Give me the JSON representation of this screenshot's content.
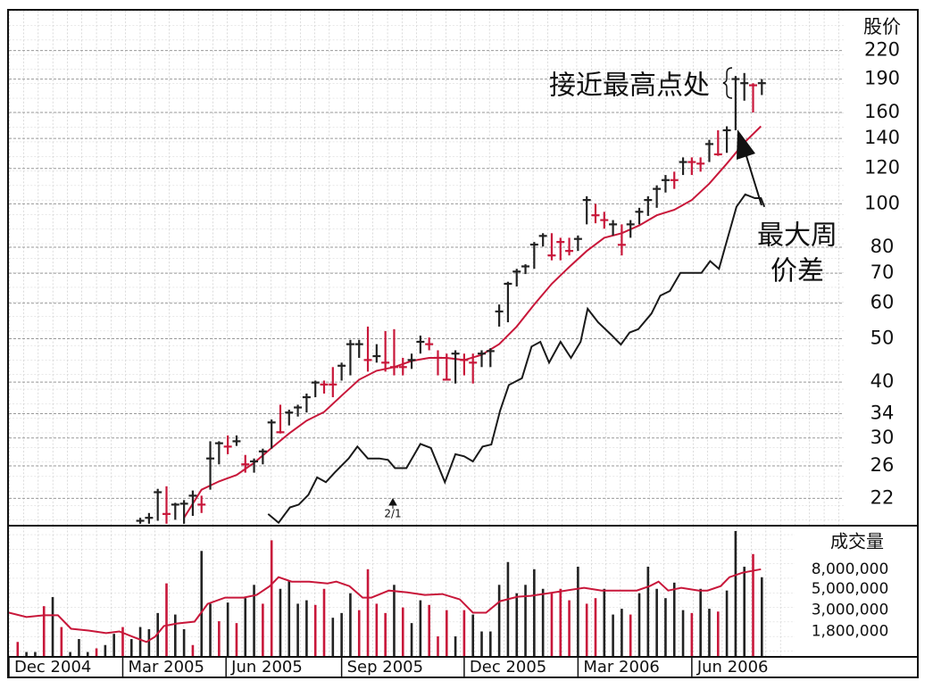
{
  "chart_data": [
    {
      "type": "hlc",
      "y_label": "股价",
      "log_scale": true,
      "grid": true,
      "ylim": [
        19.2,
        270
      ],
      "yticks": [
        22,
        26,
        30,
        34,
        40,
        50,
        60,
        70,
        80,
        100,
        120,
        140,
        160,
        190,
        220
      ],
      "xlim": [
        0,
        103
      ],
      "x": [
        15,
        16,
        17,
        18,
        19,
        20,
        21,
        22,
        23,
        24,
        25,
        26,
        27,
        28,
        29,
        30,
        31,
        32,
        33,
        34,
        35,
        36,
        37,
        38,
        39,
        40,
        41,
        42,
        43,
        44,
        45,
        46,
        47,
        48,
        49,
        50,
        51,
        52,
        53,
        54,
        55,
        56,
        57,
        58,
        59,
        60,
        61,
        62,
        63,
        64,
        65,
        66,
        67,
        68,
        69,
        70,
        71,
        72,
        73,
        74,
        75,
        76,
        77,
        78,
        79,
        80,
        81,
        82,
        83,
        84,
        85,
        86
      ],
      "high": [
        19.9,
        20.4,
        23.1,
        23.4,
        21.5,
        21.8,
        22.9,
        22.3,
        29.5,
        29.5,
        30.4,
        30.4,
        27.5,
        27.0,
        28.4,
        33.0,
        35.6,
        34.7,
        35.6,
        37.7,
        40.3,
        40.3,
        43.2,
        44.2,
        49.7,
        49.7,
        53.2,
        48.6,
        52.0,
        52.5,
        45.3,
        46.3,
        50.8,
        50.3,
        47.1,
        46.3,
        47.1,
        46.3,
        46.3,
        47.1,
        47.6,
        59.6,
        67.0,
        71.6,
        73.3,
        82.2,
        86.0,
        86.0,
        84.0,
        84.0,
        85.0,
        104,
        100,
        96,
        92,
        90,
        92,
        98,
        104,
        110,
        116,
        118,
        127,
        127,
        127,
        139,
        146,
        149,
        193,
        196,
        186,
        190
      ],
      "low": [
        19.3,
        19.3,
        19.6,
        19.3,
        19.7,
        19.3,
        20.1,
        20.4,
        23.0,
        26.2,
        27.6,
        28.8,
        25.1,
        25.1,
        26.2,
        28.4,
        30.7,
        32.0,
        33.5,
        34.2,
        37.0,
        37.7,
        37.0,
        40.3,
        41.4,
        45.3,
        42.2,
        44.2,
        42.2,
        41.4,
        41.4,
        42.8,
        46.3,
        47.1,
        41.4,
        40.5,
        39.7,
        41.4,
        39.7,
        43.2,
        43.2,
        53.2,
        54.4,
        65.4,
        69.7,
        71.6,
        80.3,
        74.8,
        74.8,
        76.7,
        78.5,
        90,
        90.5,
        88,
        85,
        76.7,
        84,
        90,
        94,
        98,
        106,
        108,
        116,
        116,
        118,
        124,
        128,
        130,
        146,
        170,
        160,
        175
      ],
      "close": [
        19.6,
        19.9,
        22.7,
        20.3,
        21.3,
        21.4,
        22.3,
        21.3,
        27.0,
        29.2,
        28.7,
        29.5,
        26.2,
        26.6,
        28.0,
        32.5,
        30.9,
        34.2,
        35.1,
        37.0,
        39.9,
        39.5,
        39.5,
        43.5,
        48.6,
        48.6,
        44.8,
        45.7,
        44.2,
        43.2,
        43.2,
        44.8,
        49.2,
        48.6,
        45.3,
        40.5,
        46.3,
        44.8,
        44.2,
        46.3,
        46.9,
        57.5,
        66.3,
        70.6,
        72.5,
        81.1,
        84.8,
        76.7,
        82.2,
        78.5,
        83.5,
        102,
        94.3,
        92,
        90,
        81,
        90,
        96,
        102,
        108,
        113,
        113,
        124,
        124,
        123,
        136,
        129,
        146,
        190,
        186,
        184,
        186
      ],
      "bar_colors": [
        "#222",
        "#222",
        "#222",
        "#c8173a",
        "#222",
        "#222",
        "#222",
        "#c8173a",
        "#222",
        "#222",
        "#c8173a",
        "#222",
        "#c8173a",
        "#222",
        "#222",
        "#222",
        "#c8173a",
        "#222",
        "#222",
        "#222",
        "#222",
        "#c8173a",
        "#c8173a",
        "#222",
        "#222",
        "#222",
        "#c8173a",
        "#222",
        "#c8173a",
        "#c8173a",
        "#c8173a",
        "#222",
        "#222",
        "#c8173a",
        "#c8173a",
        "#c8173a",
        "#222",
        "#c8173a",
        "#c8173a",
        "#222",
        "#222",
        "#222",
        "#222",
        "#222",
        "#222",
        "#222",
        "#222",
        "#c8173a",
        "#c8173a",
        "#c8173a",
        "#222",
        "#222",
        "#c8173a",
        "#c8173a",
        "#222",
        "#c8173a",
        "#222",
        "#222",
        "#222",
        "#222",
        "#222",
        "#c8173a",
        "#222",
        "#c8173a",
        "#c8173a",
        "#222",
        "#c8173a",
        "#222",
        "#222",
        "#222",
        "#c8173a",
        "#222"
      ],
      "lines": [
        {
          "color": "#c8173a",
          "x": [
            20,
            22,
            24,
            26,
            28,
            30,
            32,
            34,
            36,
            38,
            40,
            42,
            44,
            46,
            48,
            50,
            52,
            54,
            56,
            58,
            60,
            62,
            64,
            66,
            68,
            70,
            72,
            74,
            76,
            78,
            80,
            82,
            84,
            85.9
          ],
          "values": [
            19.9,
            23.0,
            24.0,
            24.8,
            26.4,
            28.5,
            30.7,
            32.8,
            34.3,
            37.3,
            40.5,
            42.4,
            43.2,
            44.6,
            45.3,
            45.3,
            44.8,
            46.0,
            48.6,
            53.2,
            59.6,
            66.3,
            72.3,
            78.5,
            84.0,
            86,
            89.5,
            94.3,
            97,
            102,
            111,
            123,
            137,
            149
          ]
        },
        {
          "color": "#1a1a1a",
          "x": [
            29.6,
            30.8,
            32.1,
            33.1,
            34.2,
            35.2,
            36.2,
            37.2,
            38.8,
            39.8,
            41,
            42.3,
            43.3,
            44.1,
            45.4,
            47,
            48.2,
            49.8,
            51,
            52,
            53,
            54.1,
            55.1,
            56.1,
            57.1,
            58.6,
            59.7,
            60.7,
            61.7,
            63,
            64.2,
            65.3,
            66.1,
            67.3,
            68.8,
            69.9,
            70.9,
            71.9,
            73.4,
            74.4,
            75.5,
            76.7,
            77.5,
            79.1,
            80.1,
            81.1,
            82.1,
            83.1,
            84.1,
            85.2,
            85.9,
            86.3
          ],
          "values": [
            20.3,
            19.4,
            21.0,
            21.3,
            22.4,
            24.5,
            23.9,
            25.1,
            27.0,
            28.7,
            27.0,
            27.0,
            26.8,
            25.7,
            25.7,
            29.1,
            28.5,
            23.9,
            27.6,
            27.3,
            26.6,
            28.7,
            29.0,
            34.5,
            39.4,
            40.8,
            48.0,
            49.2,
            44.2,
            49.2,
            45.3,
            49.2,
            58.3,
            54.4,
            51.0,
            48.5,
            51.6,
            52.5,
            56.9,
            62.4,
            63.9,
            70.1,
            70.1,
            70.1,
            74.5,
            71.6,
            84.0,
            98.5,
            105,
            103,
            103,
            98.5
          ]
        }
      ],
      "annotations": [
        "接近最高点处",
        "最大周",
        "价差",
        "2/1"
      ]
    },
    {
      "type": "bar",
      "y_label": "成交量",
      "log_scale": true,
      "ylim": [
        1000000,
        21300000
      ],
      "yticks": [
        {
          "value": 1800000,
          "label": "1,800,000"
        },
        {
          "value": 3000000,
          "label": "3,000,000"
        },
        {
          "value": 5000000,
          "label": "5,000,000"
        },
        {
          "value": 8000000,
          "label": "8,000,000"
        }
      ],
      "xlim": [
        0,
        103
      ],
      "xticks": [
        {
          "value": 0,
          "label": "Dec 2004"
        },
        {
          "value": 13,
          "label": "Mar 2005"
        },
        {
          "value": 24.8,
          "label": "Jun 2005"
        },
        {
          "value": 38,
          "label": "Sep 2005"
        },
        {
          "value": 52,
          "label": "Dec 2005"
        },
        {
          "value": 65,
          "label": "Mar 2006"
        },
        {
          "value": 78,
          "label": "Jun 2006"
        }
      ],
      "x": [
        1,
        2,
        3,
        4,
        5,
        6,
        7,
        8,
        9,
        10,
        11,
        12,
        13,
        14,
        15,
        16,
        17,
        18,
        19,
        20,
        21,
        22,
        23,
        24,
        25,
        26,
        27,
        28,
        29,
        30,
        31,
        32,
        33,
        34,
        35,
        36,
        37,
        38,
        39,
        40,
        41,
        42,
        43,
        44,
        45,
        46,
        47,
        48,
        49,
        50,
        51,
        52,
        53,
        54,
        55,
        56,
        57,
        58,
        59,
        60,
        61,
        62,
        63,
        64,
        65,
        66,
        67,
        68,
        69,
        70,
        71,
        72,
        73,
        74,
        75,
        76,
        77,
        78,
        79,
        80,
        81,
        82,
        83,
        84,
        85,
        86
      ],
      "values": [
        1400000,
        1100000,
        1100000,
        3300000,
        4100000,
        2000000,
        1100000,
        1500000,
        1100000,
        1200000,
        1300000,
        1700000,
        2000000,
        1500000,
        2000000,
        1900000,
        2800000,
        5700000,
        2700000,
        1900000,
        1300000,
        12400000,
        3500000,
        2300000,
        3600000,
        2200000,
        4000000,
        5500000,
        3500000,
        16000000,
        5000000,
        6000000,
        3500000,
        3800000,
        3400000,
        5000000,
        2500000,
        2800000,
        4500000,
        3000000,
        8000000,
        3500000,
        2800000,
        5500000,
        3200000,
        2200000,
        3800000,
        3400000,
        1600000,
        3000000,
        1600000,
        3000000,
        2700000,
        1800000,
        1800000,
        5500000,
        9500000,
        4500000,
        5500000,
        8000000,
        5000000,
        4500000,
        5000000,
        3800000,
        8500000,
        3500000,
        4000000,
        5000000,
        2700000,
        3100000,
        2700000,
        4500000,
        8500000,
        5000000,
        4000000,
        5800000,
        3000000,
        2800000,
        5000000,
        3100000,
        2900000,
        4800000,
        20000000,
        8500000,
        11500000,
        6600000
      ],
      "bar_colors": [
        "#c8173a",
        "#222",
        "#222",
        "#c8173a",
        "#222",
        "#c8173a",
        "#222",
        "#222",
        "#222",
        "#c8173a",
        "#222",
        "#222",
        "#c8173a",
        "#222",
        "#222",
        "#222",
        "#222",
        "#c8173a",
        "#222",
        "#222",
        "#c8173a",
        "#222",
        "#222",
        "#c8173a",
        "#222",
        "#c8173a",
        "#222",
        "#222",
        "#c8173a",
        "#c8173a",
        "#222",
        "#222",
        "#222",
        "#222",
        "#c8173a",
        "#c8173a",
        "#222",
        "#222",
        "#222",
        "#c8173a",
        "#c8173a",
        "#c8173a",
        "#c8173a",
        "#222",
        "#c8173a",
        "#222",
        "#222",
        "#c8173a",
        "#c8173a",
        "#c8173a",
        "#222",
        "#c8173a",
        "#222",
        "#222",
        "#222",
        "#222",
        "#222",
        "#222",
        "#222",
        "#222",
        "#222",
        "#c8173a",
        "#c8173a",
        "#c8173a",
        "#222",
        "#c8173a",
        "#c8173a",
        "#222",
        "#222",
        "#222",
        "#c8173a",
        "#222",
        "#222",
        "#222",
        "#222",
        "#222",
        "#222",
        "#c8173a",
        "#222",
        "#222",
        "#c8173a",
        "#222",
        "#222",
        "#222",
        "#c8173a",
        "#222"
      ],
      "lines": [
        {
          "color": "#c8173a",
          "x": [
            0,
            2,
            4,
            5.6,
            7.1,
            9.1,
            11.1,
            12.6,
            14.1,
            15.7,
            16.7,
            17.7,
            19.2,
            21.2,
            22.7,
            24.7,
            26.8,
            28.3,
            29.8,
            30.8,
            32.3,
            34.3,
            36.4,
            37.4,
            38.9,
            40.4,
            41.4,
            43.4,
            45.5,
            47.5,
            49.5,
            51.5,
            53,
            54.5,
            56.1,
            58.1,
            59.6,
            61.6,
            63.6,
            65.7,
            67.7,
            69.7,
            71.7,
            73.2,
            74.2,
            75.3,
            76.8,
            78.8,
            79.8,
            81.3,
            82.3,
            83.8,
            85.9
          ],
          "values": [
            2820000,
            2540000,
            2650000,
            2650000,
            1920000,
            1840000,
            1730000,
            1800000,
            1590000,
            1400000,
            1590000,
            2050000,
            2180000,
            2280000,
            3490000,
            4050000,
            4050000,
            4320000,
            5340000,
            6610000,
            5940000,
            5940000,
            5690000,
            5940000,
            5340000,
            4050000,
            4050000,
            4800000,
            4600000,
            4320000,
            4410000,
            3880000,
            2820000,
            2820000,
            3720000,
            4140000,
            4230000,
            4500000,
            4800000,
            5120000,
            4800000,
            4800000,
            4800000,
            5340000,
            5940000,
            4800000,
            5120000,
            4800000,
            4800000,
            5340000,
            6610000,
            7350000,
            8000000
          ]
        }
      ]
    }
  ]
}
